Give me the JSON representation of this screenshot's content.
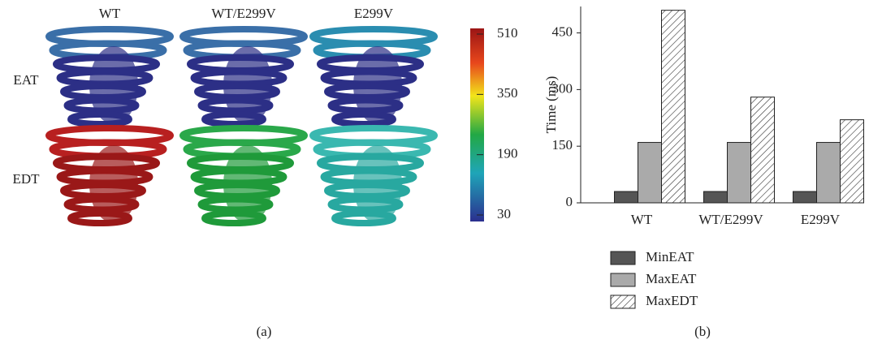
{
  "chart_data": [
    {
      "type": "image-grid",
      "columns": [
        "WT",
        "WT/E299V",
        "E299V"
      ],
      "rows": [
        "EAT",
        "EDT"
      ],
      "clim": [
        30,
        510
      ],
      "cticks": [
        30,
        190,
        350,
        510
      ],
      "caption": "(a)"
    },
    {
      "type": "bar",
      "y_label": "Time (ms)",
      "categories": [
        "WT",
        "WT/E299V",
        "E299V"
      ],
      "series": [
        {
          "name": "MinEAT",
          "color": "#555555",
          "values": [
            30,
            30,
            30
          ]
        },
        {
          "name": "MaxEAT",
          "color": "#aaaaaa",
          "values": [
            160,
            160,
            160
          ]
        },
        {
          "name": "MaxEDT",
          "color": "#ffffff",
          "hatch": true,
          "values": [
            510,
            280,
            220
          ]
        }
      ],
      "ylim": [
        0,
        520
      ],
      "yticks": [
        0,
        150,
        300,
        450
      ],
      "legend": "bottom",
      "caption": "(b)"
    }
  ]
}
